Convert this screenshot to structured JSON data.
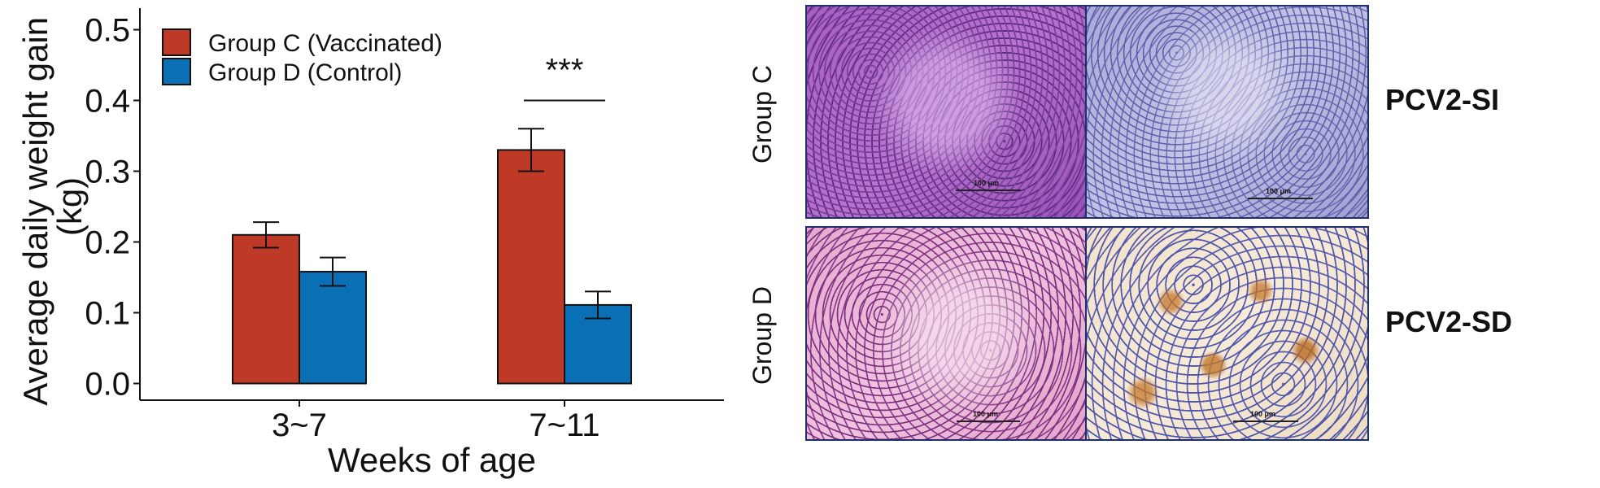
{
  "chart_data": {
    "type": "bar",
    "categories": [
      "3~7",
      "7~11"
    ],
    "series": [
      {
        "name": "Group C (Vaccinated)",
        "values": [
          0.21,
          0.33
        ],
        "errors": [
          0.018,
          0.03
        ],
        "color": "#be3a26"
      },
      {
        "name": "Group D (Control)",
        "values": [
          0.158,
          0.111
        ],
        "errors": [
          0.02,
          0.019
        ],
        "color": "#0a6fb5"
      }
    ],
    "xlabel": "Weeks of age",
    "ylabel": "Average daily weight gain (kg)",
    "ylabel_lines": [
      "Average daily weight gain",
      "(kg)"
    ],
    "ylim": [
      0,
      0.52
    ],
    "yticks": [
      "0.0",
      "0.1",
      "0.2",
      "0.3",
      "0.4",
      "0.5"
    ],
    "ytick_values": [
      0,
      0.1,
      0.2,
      0.3,
      0.4,
      0.5
    ],
    "legend_position": "top-left",
    "grid": false,
    "annotations": [
      {
        "text": "***",
        "category": "7~11",
        "y": 0.4
      }
    ]
  },
  "micrographs": {
    "row_labels": [
      "Group C",
      "Group D"
    ],
    "side_labels": [
      "PCV2-SI",
      "PCV2-SD"
    ],
    "scale_bar_text": "100 μm",
    "frame_color": "#1f2f6b"
  }
}
